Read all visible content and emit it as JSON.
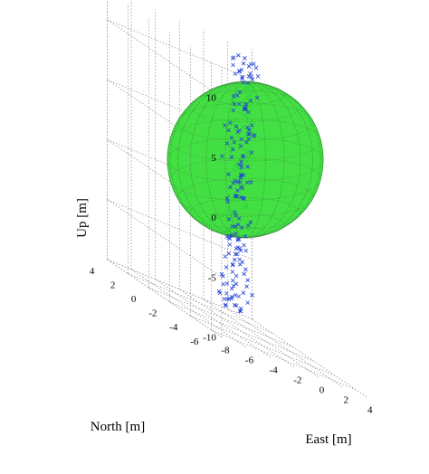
{
  "chart_data": {
    "type": "scatter",
    "title": "",
    "xlabel": "East [m]",
    "ylabel": "North [m]",
    "zlabel": "Up [m]",
    "xlim": [
      -8,
      4
    ],
    "ylim": [
      -7,
      4
    ],
    "zlim": [
      -10,
      12.5
    ],
    "x_ticks": [
      "-8",
      "-6",
      "-4",
      "-2",
      "0",
      "2",
      "4"
    ],
    "y_ticks": [
      "-6",
      "-4",
      "-2",
      "0",
      "2",
      "4"
    ],
    "z_ticks": [
      "-10",
      "-5",
      "0",
      "5",
      "10"
    ],
    "grid": true,
    "sphere": {
      "center": [
        0,
        0,
        4
      ],
      "radius": 6.5,
      "color": "#33dd33"
    },
    "marker": "x",
    "marker_color": "#1f3fd6",
    "point_count": 230
  }
}
